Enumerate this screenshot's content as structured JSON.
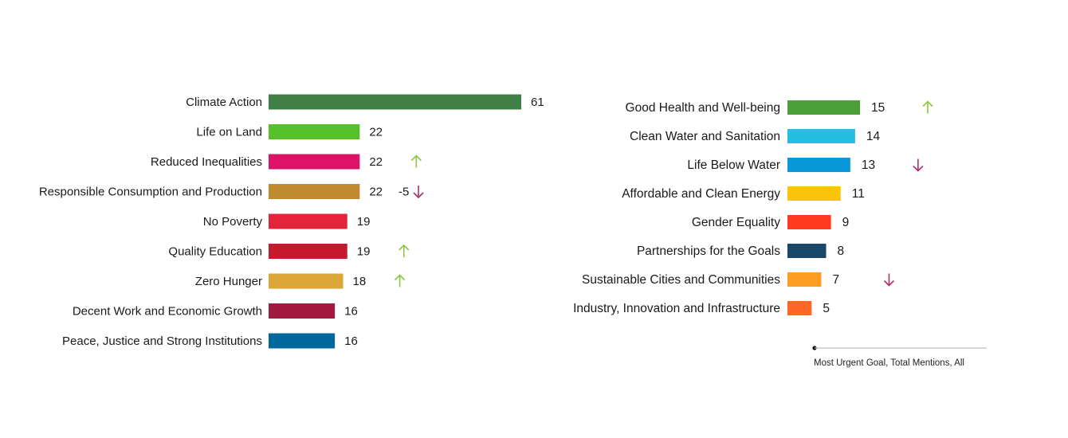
{
  "chart_data": [
    {
      "type": "bar",
      "orientation": "horizontal",
      "categories": [
        "Climate Action",
        "Life on Land",
        "Reduced Inequalities",
        "Responsible Consumption and Production",
        "No Poverty",
        "Quality Education",
        "Zero Hunger",
        "Decent Work and Economic Growth",
        "Peace, Justice and Strong Institutions"
      ],
      "values": [
        61,
        22,
        22,
        22,
        19,
        19,
        18,
        16,
        16
      ],
      "colors": [
        "#407f46",
        "#56c02b",
        "#dd1367",
        "#bf8b2e",
        "#e5243b",
        "#c5192d",
        "#dda63a",
        "#a21942",
        "#00689d"
      ],
      "change_labels": [
        "",
        "",
        "",
        "-5",
        "",
        "",
        "",
        "",
        ""
      ],
      "trend": [
        "",
        "",
        "up",
        "down",
        "",
        "up",
        "up",
        "",
        ""
      ]
    },
    {
      "type": "bar",
      "orientation": "horizontal",
      "categories": [
        "Good Health and Well-being",
        "Clean Water and Sanitation",
        "Life Below Water",
        "Affordable and Clean Energy",
        "Gender Equality",
        "Partnerships for the Goals",
        "Sustainable Cities and Communities",
        "Industry, Innovation and Infrastructure"
      ],
      "values": [
        15,
        14,
        13,
        11,
        9,
        8,
        7,
        5
      ],
      "colors": [
        "#4c9f38",
        "#26bde2",
        "#0a97d9",
        "#fcc30b",
        "#ff3a21",
        "#19486a",
        "#fd9d24",
        "#fd6925"
      ],
      "trend": [
        "up",
        "",
        "down",
        "",
        "",
        "",
        "down",
        ""
      ],
      "legend": "Most Urgent Goal, Total Mentions, All"
    }
  ],
  "trend_colors": {
    "up": "#8dc63f",
    "down": "#a8336b"
  }
}
